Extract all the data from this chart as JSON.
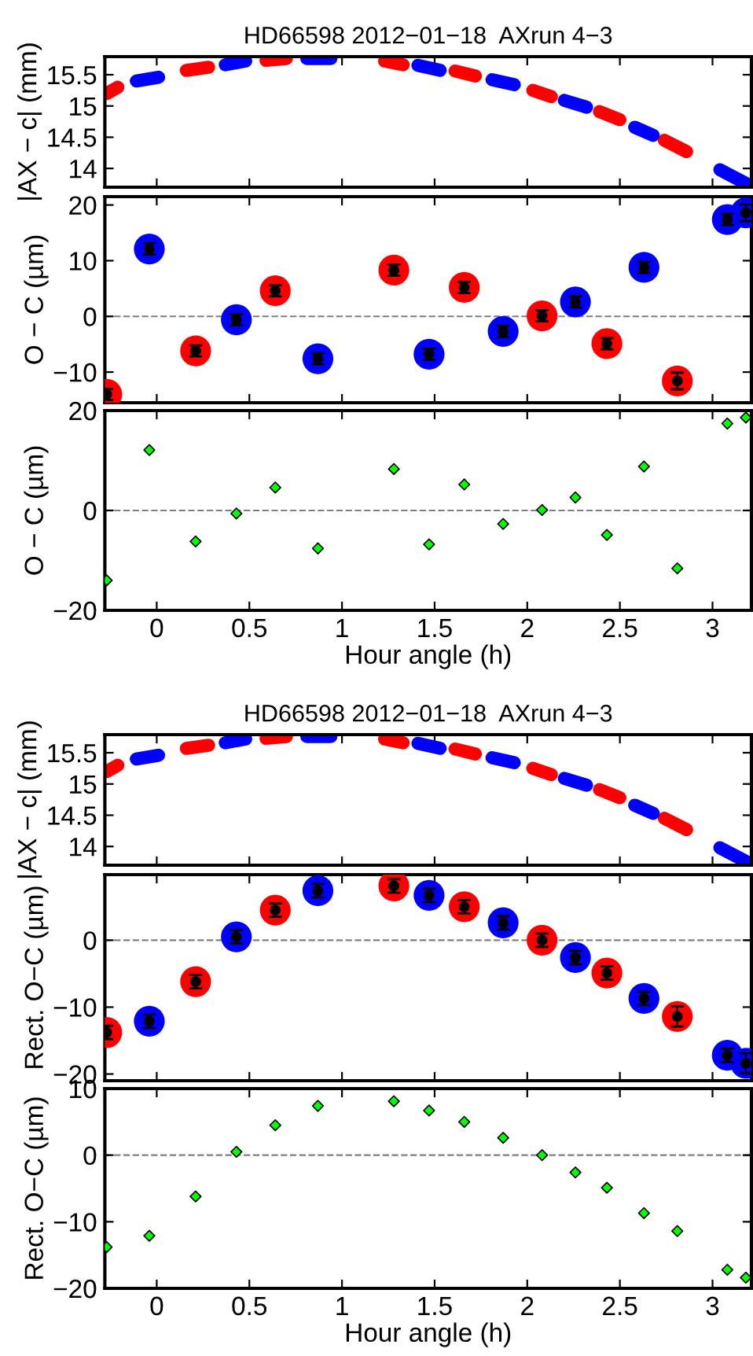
{
  "chart_data": [
    {
      "type": "line",
      "title": "HD66598 2012−01−18  AXrun 4−3",
      "ylabel": "|AX − c| (mm)",
      "xlim": [
        -0.28,
        3.21
      ],
      "xticks": [
        0,
        0.5,
        1,
        1.5,
        2,
        2.5,
        3
      ],
      "ylim": [
        13.7,
        15.79
      ],
      "yticks": [
        14,
        14.5,
        15,
        15.5
      ],
      "tick_labels": "y",
      "marker": "none",
      "series": [
        {
          "color": "#ff0000",
          "x": [
            -0.27,
            -0.21,
            null,
            0.16,
            0.28,
            null,
            0.59,
            0.7,
            null,
            1.23,
            1.33,
            null,
            1.61,
            1.72,
            null,
            2.03,
            2.13,
            null,
            2.39,
            2.5,
            null,
            2.74,
            2.86
          ],
          "values": [
            15.2,
            15.3,
            null,
            15.57,
            15.62,
            null,
            15.73,
            15.76,
            null,
            15.72,
            15.66,
            null,
            15.56,
            15.48,
            null,
            15.25,
            15.15,
            null,
            14.91,
            14.78,
            null,
            14.45,
            14.27
          ]
        },
        {
          "color": "#0000ff",
          "x": [
            -0.11,
            0.01,
            null,
            0.37,
            0.48,
            null,
            0.81,
            0.94,
            null,
            1.41,
            1.53,
            null,
            1.81,
            1.93,
            null,
            2.2,
            2.32,
            null,
            2.58,
            2.68,
            null,
            3.04,
            3.18
          ],
          "values": [
            15.4,
            15.46,
            null,
            15.66,
            15.72,
            null,
            15.76,
            15.76,
            null,
            15.65,
            15.57,
            null,
            15.42,
            15.34,
            null,
            15.09,
            14.98,
            null,
            14.66,
            14.53,
            null,
            13.98,
            13.76
          ]
        }
      ]
    },
    {
      "type": "scatter",
      "ylabel": "O − C (µm)",
      "xlim": [
        -0.28,
        3.21
      ],
      "xticks": [
        0,
        0.5,
        1,
        1.5,
        2,
        2.5,
        3
      ],
      "ylim": [
        -15.5,
        21.5
      ],
      "yticks": [
        -10,
        0,
        10,
        20
      ],
      "tick_labels": "y",
      "marker": "circle",
      "ref_lines": [
        {
          "axis": "y",
          "value": 0,
          "color": "#808080",
          "line_style": "dashed"
        }
      ],
      "series": [
        {
          "color": "#ff0000",
          "x": [
            -0.27,
            0.21,
            0.64,
            1.28,
            1.66,
            2.08,
            2.43,
            2.81
          ],
          "values": [
            -14.0,
            -6.2,
            4.6,
            8.3,
            5.2,
            0.1,
            -4.9,
            -11.6
          ]
        },
        {
          "color": "#0000ff",
          "x": [
            -0.04,
            0.43,
            0.87,
            1.47,
            1.87,
            2.26,
            2.63,
            3.08,
            3.18
          ],
          "values": [
            12.1,
            -0.6,
            -7.6,
            -6.8,
            -2.7,
            2.6,
            8.8,
            17.4,
            18.6
          ]
        },
        {
          "color": "#000000",
          "x": [
            -0.27,
            -0.04,
            0.21,
            0.43,
            0.64,
            0.87,
            1.28,
            1.47,
            1.66,
            1.87,
            2.08,
            2.26,
            2.43,
            2.63,
            2.81,
            3.08,
            3.18
          ],
          "values": [
            -14.0,
            12.1,
            -6.2,
            -0.6,
            4.6,
            -7.6,
            8.3,
            -6.8,
            5.2,
            -2.7,
            0.1,
            2.6,
            -4.9,
            8.8,
            -11.6,
            17.4,
            18.6
          ],
          "errors": [
            1,
            1,
            1,
            1,
            1,
            1,
            1,
            1,
            1,
            1,
            1,
            1,
            1,
            1,
            1.5,
            1,
            1.5
          ]
        }
      ]
    },
    {
      "type": "scatter",
      "ylabel": "O − C (µm)",
      "xlabel": "Hour angle (h)",
      "xlim": [
        -0.28,
        3.21
      ],
      "xticks": [
        0,
        0.5,
        1,
        1.5,
        2,
        2.5,
        3
      ],
      "ylim": [
        -20,
        20
      ],
      "yticks": [
        -20,
        0,
        20
      ],
      "marker": "diamond",
      "ref_lines": [
        {
          "axis": "y",
          "value": 0,
          "color": "#808080",
          "line_style": "dashed"
        }
      ],
      "series": [
        {
          "color": "#00ff00",
          "x": [
            -0.27,
            -0.04,
            0.21,
            0.43,
            0.64,
            0.87,
            1.28,
            1.47,
            1.66,
            1.87,
            2.08,
            2.26,
            2.43,
            2.63,
            2.81,
            3.08,
            3.18
          ],
          "values": [
            -14.0,
            12.1,
            -6.2,
            -0.6,
            4.6,
            -7.6,
            8.3,
            -6.8,
            5.2,
            -2.7,
            0.1,
            2.6,
            -4.9,
            8.8,
            -11.6,
            17.4,
            18.6
          ]
        }
      ]
    },
    {
      "type": "line",
      "title": "HD66598 2012−01−18  AXrun 4−3",
      "ylabel": "|AX − c| (mm)",
      "xlim": [
        -0.28,
        3.21
      ],
      "xticks": [
        0,
        0.5,
        1,
        1.5,
        2,
        2.5,
        3
      ],
      "ylim": [
        13.7,
        15.79
      ],
      "yticks": [
        14,
        14.5,
        15,
        15.5
      ],
      "tick_labels": "y",
      "marker": "none",
      "series": [
        {
          "color": "#ff0000",
          "x": [
            -0.27,
            -0.21,
            null,
            0.16,
            0.28,
            null,
            0.59,
            0.7,
            null,
            1.23,
            1.33,
            null,
            1.61,
            1.72,
            null,
            2.03,
            2.13,
            null,
            2.39,
            2.5,
            null,
            2.74,
            2.86
          ],
          "values": [
            15.2,
            15.3,
            null,
            15.57,
            15.62,
            null,
            15.73,
            15.76,
            null,
            15.72,
            15.66,
            null,
            15.56,
            15.48,
            null,
            15.25,
            15.15,
            null,
            14.91,
            14.78,
            null,
            14.45,
            14.27
          ]
        },
        {
          "color": "#0000ff",
          "x": [
            -0.11,
            0.01,
            null,
            0.37,
            0.48,
            null,
            0.81,
            0.94,
            null,
            1.41,
            1.53,
            null,
            1.81,
            1.93,
            null,
            2.2,
            2.32,
            null,
            2.58,
            2.68,
            null,
            3.04,
            3.18
          ],
          "values": [
            15.4,
            15.46,
            null,
            15.66,
            15.72,
            null,
            15.76,
            15.76,
            null,
            15.65,
            15.57,
            null,
            15.42,
            15.34,
            null,
            15.09,
            14.98,
            null,
            14.66,
            14.53,
            null,
            13.98,
            13.76
          ]
        }
      ]
    },
    {
      "type": "scatter",
      "ylabel": "Rect. O−C (µm)",
      "xlim": [
        -0.28,
        3.21
      ],
      "xticks": [
        0,
        0.5,
        1,
        1.5,
        2,
        2.5,
        3
      ],
      "ylim": [
        -21,
        9.8
      ],
      "yticks": [
        -20,
        -10,
        0
      ],
      "tick_labels": "y",
      "marker": "circle",
      "ref_lines": [
        {
          "axis": "y",
          "value": 0,
          "color": "#808080",
          "line_style": "dashed"
        }
      ],
      "series": [
        {
          "color": "#ff0000",
          "x": [
            -0.27,
            0.21,
            0.64,
            1.28,
            1.66,
            2.08,
            2.43,
            2.81
          ],
          "values": [
            -13.8,
            -6.2,
            4.5,
            8.1,
            5.0,
            0.0,
            -4.9,
            -11.4
          ]
        },
        {
          "color": "#0000ff",
          "x": [
            -0.04,
            0.43,
            0.87,
            1.47,
            1.87,
            2.26,
            2.63,
            3.08,
            3.18
          ],
          "values": [
            -12.1,
            0.5,
            7.4,
            6.7,
            2.6,
            -2.6,
            -8.7,
            -17.2,
            -18.4
          ]
        },
        {
          "color": "#000000",
          "x": [
            -0.27,
            -0.04,
            0.21,
            0.43,
            0.64,
            0.87,
            1.28,
            1.47,
            1.66,
            1.87,
            2.08,
            2.26,
            2.43,
            2.63,
            2.81,
            3.08,
            3.18
          ],
          "values": [
            -13.8,
            -12.1,
            -6.2,
            0.5,
            4.5,
            7.4,
            8.1,
            6.7,
            5.0,
            2.6,
            0.0,
            -2.6,
            -4.9,
            -8.7,
            -11.4,
            -17.2,
            -18.4
          ],
          "errors": [
            1,
            1,
            1,
            1,
            1,
            1,
            1,
            1,
            1,
            1,
            1,
            1,
            1,
            1,
            1.5,
            1,
            1.5
          ]
        }
      ]
    },
    {
      "type": "scatter",
      "ylabel": "Rect. O−C (µm)",
      "xlabel": "Hour angle (h)",
      "xlim": [
        -0.28,
        3.21
      ],
      "xticks": [
        0,
        0.5,
        1,
        1.5,
        2,
        2.5,
        3
      ],
      "ylim": [
        -20,
        10
      ],
      "yticks": [
        -20,
        -10,
        0,
        10
      ],
      "marker": "diamond",
      "ref_lines": [
        {
          "axis": "y",
          "value": 0,
          "color": "#808080",
          "line_style": "dashed"
        }
      ],
      "series": [
        {
          "color": "#00ff00",
          "x": [
            -0.27,
            -0.04,
            0.21,
            0.43,
            0.64,
            0.87,
            1.28,
            1.47,
            1.66,
            1.87,
            2.08,
            2.26,
            2.43,
            2.63,
            2.81,
            3.08,
            3.18
          ],
          "values": [
            -13.8,
            -12.1,
            -6.2,
            0.5,
            4.5,
            7.4,
            8.1,
            6.7,
            5.0,
            2.6,
            0.0,
            -2.6,
            -4.9,
            -8.7,
            -11.4,
            -17.2,
            -18.4
          ]
        }
      ]
    }
  ]
}
